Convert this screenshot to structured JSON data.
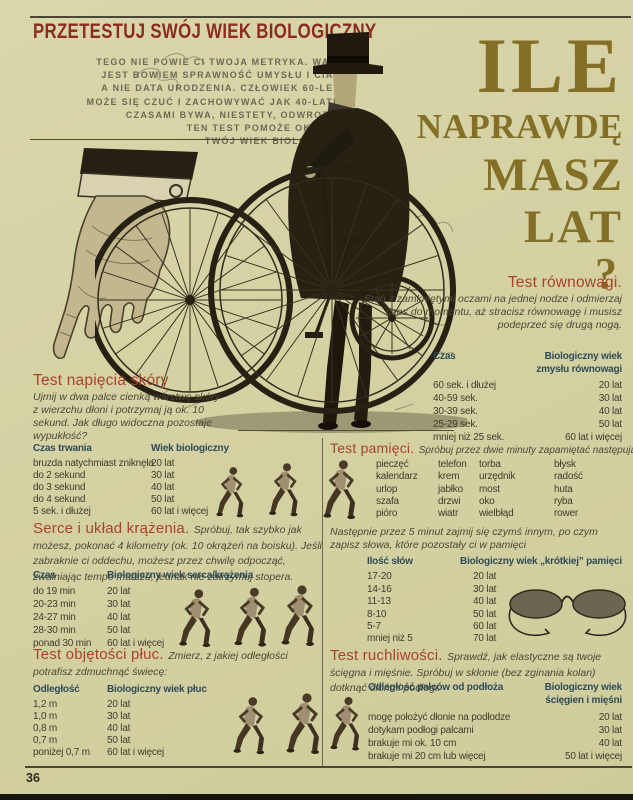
{
  "page": {
    "number": "36",
    "kicker": "PRZETESTUJ SWÓJ WIEK BIOLOGICZNY",
    "intro_lines": [
      "TEGO NIE POWIE CI TWOJA METRYKA. WAŻNA",
      "JEST BOWIEM SPRAWNOŚĆ UMYSŁU I CIAŁA,",
      "A NIE DATA URODZENIA. CZŁOWIEK 60-LETNI",
      "MOŻE SIĘ CZUĆ I ZACHOWYWAĆ JAK 40-LATEK.",
      "CZASAMI BYWA, NIESTETY, ODWROTNIE.",
      "TEN TEST POMOŻE OKREŚLIĆ",
      "TWÓJ WIEK BIOLOGICZNY."
    ],
    "big_title": {
      "l1": "ILE",
      "l2": "NAPRAWDĘ",
      "l3": "MASZ",
      "l4": "LAT",
      "l5": "?"
    }
  },
  "sections": {
    "skin": {
      "title": "Test napięcia skóry",
      "instructions": "Ujmij w dwa palce cienką warstwę skóry z wierzchu dłoni i potrzymaj ją ok. 10 sekund. Jak długo widoczna pozostaje wypukłość?",
      "headers": [
        "Czas trwania",
        "Wiek biologiczny"
      ],
      "rows": [
        [
          "bruzda natychmiast zniknęła",
          "20 lat"
        ],
        [
          "do 2 sekund",
          "30 lat"
        ],
        [
          "do 3 sekund",
          "40 lat"
        ],
        [
          "do 4 sekund",
          "50 lat"
        ],
        [
          "5 sek. i dłużej",
          "60 lat i więcej"
        ]
      ]
    },
    "heart": {
      "title": "Serce i układ krążenia.",
      "instructions": "Spróbuj, tak szybko jak możesz, pokonać 4 kilometry (ok. 10 okrążeń na boisku). Jeśli zabraknie ci oddechu, możesz przez chwilę odpocząć, zwalniając tempo marszu, jednak nie zatrzymuj stopera.",
      "headers": [
        "Czas",
        "Biologiczny wiek serca/krążenia"
      ],
      "rows": [
        [
          "do 19 min",
          "20 lat"
        ],
        [
          "20-23 min",
          "30 lat"
        ],
        [
          "24-27 min",
          "40 lat"
        ],
        [
          "28-30 min",
          "50 lat"
        ],
        [
          "ponad 30 min",
          "60 lat i więcej"
        ]
      ]
    },
    "lungs": {
      "title": "Test objętości płuc.",
      "instructions": "Zmierz, z jakiej odległości potrafisz zdmuchnąć świecę:",
      "headers": [
        "Odległość",
        "Biologiczny wiek płuc"
      ],
      "rows": [
        [
          "1,2 m",
          "20 lat"
        ],
        [
          "1,0 m",
          "30 lat"
        ],
        [
          "0,8 m",
          "40 lat"
        ],
        [
          "0,7 m",
          "50 lat"
        ],
        [
          "poniżej 0,7 m",
          "60 lat i więcej"
        ]
      ]
    },
    "balance": {
      "title": "Test równowagi.",
      "instructions": "Stań z zamkniętymi oczami na jednej nodze i odmierzaj czas do momentu, aż stracisz równowagę i musisz podeprzeć się drugą nogą.",
      "headers": [
        "Czas",
        "Biologiczny wiek",
        "zmysłu równowagi"
      ],
      "rows": [
        [
          "60 sek. i dłużej",
          "20 lat"
        ],
        [
          "40-59 sek.",
          "30 lat"
        ],
        [
          "30-39 sek.",
          "40 lat"
        ],
        [
          "25-29 sek.",
          "50 lat"
        ],
        [
          "mniej niż 25 sek.",
          "60 lat i więcej"
        ]
      ]
    },
    "memory": {
      "title": "Test pamięci.",
      "instructions": "Spróbuj przez dwie minuty zapamiętać następujące słowa:",
      "words": [
        [
          "pieczęć",
          "telefon",
          "torba",
          "błysk"
        ],
        [
          "kalendarz",
          "krem",
          "urzędnik",
          "radość"
        ],
        [
          "urlop",
          "jabłko",
          "most",
          "huta"
        ],
        [
          "szafa",
          "drzwi",
          "oko",
          "ryba"
        ],
        [
          "pióro",
          "wiatr",
          "wielbłąd",
          "rower"
        ]
      ],
      "note": "Następnie przez 5 minut zajmij się czymś innym, po czym zapisz słowa, które pozostały ci w pamięci",
      "headers": [
        "Ilość słów",
        "Biologiczny wiek „krótkiej” pamięci"
      ],
      "rows": [
        [
          "17-20",
          "20 lat"
        ],
        [
          "14-16",
          "30 lat"
        ],
        [
          "11-13",
          "40 lat"
        ],
        [
          "8-10",
          "50 lat"
        ],
        [
          "5-7",
          "60 lat"
        ],
        [
          "mniej niż 5",
          "70 lat"
        ]
      ]
    },
    "mobility": {
      "title": "Test ruchliwości.",
      "instructions": "Sprawdź, jak elastyczne są twoje ścięgna i mięśnie. Spróbuj w skłonie (bez zginania kolan) dotknąć dłońmi podłogi.",
      "headers": [
        "Odległość palców od podłoża",
        "Biologiczny wiek",
        "ścięgien i mięśni"
      ],
      "rows": [
        [
          "mogę położyć dłonie na podłodze",
          "20 lat"
        ],
        [
          "dotykam podłogi palcami",
          "30 lat"
        ],
        [
          "brakuje mi ok. 10 cm",
          "40 lat"
        ],
        [
          "brakuje mi 20 cm lub więcej",
          "50 lat i więcej"
        ]
      ]
    }
  },
  "colors": {
    "background": "#d4d1a3",
    "accent_red": "#a8432a",
    "kicker_red": "#8c2c1e",
    "accent_gold": "#837026",
    "table_header_slate": "#2f4b58",
    "body_text": "#3e3d2c"
  }
}
